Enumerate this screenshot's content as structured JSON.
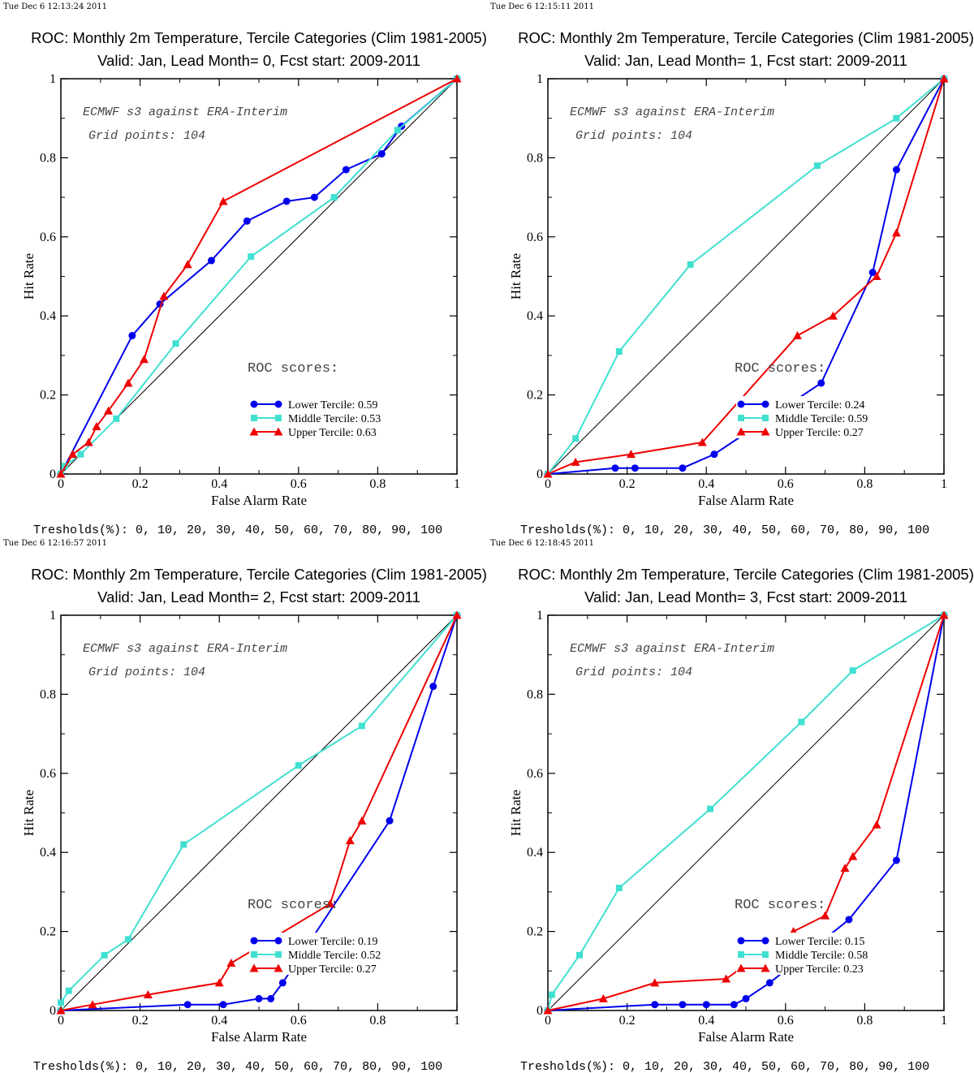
{
  "colors": {
    "lower": "#0000ee",
    "middle": "#40e0d0",
    "upper": "#ee0000",
    "diagonal": "#000000"
  },
  "chart_data": [
    {
      "type": "line",
      "timestamp": "Tue Dec  6 12:13:24 2011",
      "title": "ROC: Monthly 2m Temperature, Tercile Categories (Clim 1981-2005)",
      "subtitle": "Valid: Jan, Lead Month= 0, Fcst start: 2009-2011",
      "xlabel": "False Alarm Rate",
      "ylabel": "Hit Rate",
      "xlim": [
        0,
        1
      ],
      "ylim": [
        0,
        1
      ],
      "x_ticks": [
        "0",
        "0.2",
        "0.4",
        "0.6",
        "0.8",
        "1"
      ],
      "y_ticks": [
        "0",
        "0.2",
        "0.4",
        "0.6",
        "0.8",
        "1"
      ],
      "annotations": [
        "ECMWF s3 against ERA-Interim",
        "Grid points:  104"
      ],
      "roc_scores_label": "ROC scores:",
      "footer": "Tresholds(%): 0, 10, 20, 30, 40, 50, 60, 70, 80, 90, 100",
      "series": [
        {
          "key": "lower",
          "name": "Lower Tercile: 0.59",
          "marker": "circle",
          "points": [
            [
              0,
              0
            ],
            [
              0.18,
              0.35
            ],
            [
              0.25,
              0.43
            ],
            [
              0.38,
              0.54
            ],
            [
              0.47,
              0.64
            ],
            [
              0.57,
              0.69
            ],
            [
              0.64,
              0.7
            ],
            [
              0.72,
              0.77
            ],
            [
              0.81,
              0.81
            ],
            [
              0.86,
              0.88
            ],
            [
              1,
              1
            ]
          ]
        },
        {
          "key": "middle",
          "name": "Middle Tercile: 0.53",
          "marker": "square",
          "points": [
            [
              0,
              0
            ],
            [
              0.01,
              0.02
            ],
            [
              0.05,
              0.05
            ],
            [
              0.14,
              0.14
            ],
            [
              0.29,
              0.33
            ],
            [
              0.48,
              0.55
            ],
            [
              0.69,
              0.7
            ],
            [
              0.85,
              0.87
            ],
            [
              1,
              1
            ]
          ]
        },
        {
          "key": "upper",
          "name": "Upper Tercile: 0.63",
          "marker": "triangle",
          "points": [
            [
              0,
              0
            ],
            [
              0.03,
              0.05
            ],
            [
              0.07,
              0.08
            ],
            [
              0.09,
              0.12
            ],
            [
              0.12,
              0.16
            ],
            [
              0.17,
              0.23
            ],
            [
              0.21,
              0.29
            ],
            [
              0.26,
              0.45
            ],
            [
              0.32,
              0.53
            ],
            [
              0.41,
              0.69
            ],
            [
              1,
              1
            ]
          ]
        }
      ]
    },
    {
      "type": "line",
      "timestamp": "Tue Dec  6 12:15:11 2011",
      "title": "ROC: Monthly 2m Temperature, Tercile Categories (Clim 1981-2005)",
      "subtitle": "Valid: Jan, Lead Month= 1, Fcst start: 2009-2011",
      "xlabel": "False Alarm Rate",
      "ylabel": "Hit Rate",
      "xlim": [
        0,
        1
      ],
      "ylim": [
        0,
        1
      ],
      "x_ticks": [
        "0",
        "0.2",
        "0.4",
        "0.6",
        "0.8",
        "1"
      ],
      "y_ticks": [
        "0",
        "0.2",
        "0.4",
        "0.6",
        "0.8",
        "1"
      ],
      "annotations": [
        "ECMWF s3 against ERA-Interim",
        "Grid points:  104"
      ],
      "roc_scores_label": "ROC scores:",
      "footer": "Tresholds(%): 0, 10, 20, 30, 40, 50, 60, 70, 80, 90, 100",
      "series": [
        {
          "key": "lower",
          "name": "Lower Tercile: 0.24",
          "marker": "circle",
          "points": [
            [
              0,
              0
            ],
            [
              0.17,
              0.015
            ],
            [
              0.22,
              0.015
            ],
            [
              0.34,
              0.015
            ],
            [
              0.42,
              0.05
            ],
            [
              0.69,
              0.23
            ],
            [
              0.82,
              0.51
            ],
            [
              0.88,
              0.77
            ],
            [
              1,
              1
            ]
          ]
        },
        {
          "key": "middle",
          "name": "Middle Tercile: 0.59",
          "marker": "square",
          "points": [
            [
              0,
              0
            ],
            [
              0.07,
              0.09
            ],
            [
              0.18,
              0.31
            ],
            [
              0.36,
              0.53
            ],
            [
              0.68,
              0.78
            ],
            [
              0.88,
              0.9
            ],
            [
              1,
              1
            ]
          ]
        },
        {
          "key": "upper",
          "name": "Upper Tercile: 0.27",
          "marker": "triangle",
          "points": [
            [
              0,
              0
            ],
            [
              0.07,
              0.03
            ],
            [
              0.21,
              0.05
            ],
            [
              0.39,
              0.08
            ],
            [
              0.63,
              0.35
            ],
            [
              0.72,
              0.4
            ],
            [
              0.83,
              0.5
            ],
            [
              0.88,
              0.61
            ],
            [
              1,
              1
            ]
          ]
        }
      ]
    },
    {
      "type": "line",
      "timestamp": "Tue Dec  6 12:16:57 2011",
      "title": "ROC: Monthly 2m Temperature, Tercile Categories (Clim 1981-2005)",
      "subtitle": "Valid: Jan, Lead Month= 2, Fcst start: 2009-2011",
      "xlabel": "False Alarm Rate",
      "ylabel": "Hit Rate",
      "xlim": [
        0,
        1
      ],
      "ylim": [
        0,
        1
      ],
      "x_ticks": [
        "0",
        "0.2",
        "0.4",
        "0.6",
        "0.8",
        "1"
      ],
      "y_ticks": [
        "0",
        "0.2",
        "0.4",
        "0.6",
        "0.8",
        "1"
      ],
      "annotations": [
        "ECMWF s3 against ERA-Interim",
        "Grid points:  104"
      ],
      "roc_scores_label": "ROC scores:",
      "footer": "Tresholds(%): 0, 10, 20, 30, 40, 50, 60, 70, 80, 90, 100",
      "series": [
        {
          "key": "lower",
          "name": "Lower Tercile: 0.19",
          "marker": "circle",
          "points": [
            [
              0,
              0
            ],
            [
              0.32,
              0.015
            ],
            [
              0.41,
              0.015
            ],
            [
              0.5,
              0.03
            ],
            [
              0.53,
              0.03
            ],
            [
              0.56,
              0.07
            ],
            [
              0.83,
              0.48
            ],
            [
              0.94,
              0.82
            ],
            [
              1,
              1
            ]
          ]
        },
        {
          "key": "middle",
          "name": "Middle Tercile: 0.52",
          "marker": "square",
          "points": [
            [
              0,
              0
            ],
            [
              0,
              0.02
            ],
            [
              0.02,
              0.05
            ],
            [
              0.11,
              0.14
            ],
            [
              0.17,
              0.18
            ],
            [
              0.31,
              0.42
            ],
            [
              0.6,
              0.62
            ],
            [
              0.76,
              0.72
            ],
            [
              1,
              1
            ]
          ]
        },
        {
          "key": "upper",
          "name": "Upper Tercile: 0.27",
          "marker": "triangle",
          "points": [
            [
              0,
              0
            ],
            [
              0.08,
              0.015
            ],
            [
              0.22,
              0.04
            ],
            [
              0.4,
              0.07
            ],
            [
              0.43,
              0.12
            ],
            [
              0.68,
              0.27
            ],
            [
              0.73,
              0.43
            ],
            [
              0.76,
              0.48
            ],
            [
              1,
              1
            ]
          ]
        }
      ]
    },
    {
      "type": "line",
      "timestamp": "Tue Dec  6 12:18:45 2011",
      "title": "ROC: Monthly 2m Temperature, Tercile Categories (Clim 1981-2005)",
      "subtitle": "Valid: Jan, Lead Month= 3, Fcst start: 2009-2011",
      "xlabel": "False Alarm Rate",
      "ylabel": "Hit Rate",
      "xlim": [
        0,
        1
      ],
      "ylim": [
        0,
        1
      ],
      "x_ticks": [
        "0",
        "0.2",
        "0.4",
        "0.6",
        "0.8",
        "1"
      ],
      "y_ticks": [
        "0",
        "0.2",
        "0.4",
        "0.6",
        "0.8",
        "1"
      ],
      "annotations": [
        "ECMWF s3 against ERA-Interim",
        "Grid points:  104"
      ],
      "roc_scores_label": "ROC scores:",
      "footer": "Tresholds(%): 0, 10, 20, 30, 40, 50, 60, 70, 80, 90, 100",
      "series": [
        {
          "key": "lower",
          "name": "Lower Tercile: 0.15",
          "marker": "circle",
          "points": [
            [
              0,
              0
            ],
            [
              0.27,
              0.015
            ],
            [
              0.34,
              0.015
            ],
            [
              0.4,
              0.015
            ],
            [
              0.47,
              0.015
            ],
            [
              0.5,
              0.03
            ],
            [
              0.56,
              0.07
            ],
            [
              0.76,
              0.23
            ],
            [
              0.88,
              0.38
            ],
            [
              1,
              1
            ]
          ]
        },
        {
          "key": "middle",
          "name": "Middle Tercile: 0.58",
          "marker": "square",
          "points": [
            [
              0,
              0
            ],
            [
              0.01,
              0.04
            ],
            [
              0.08,
              0.14
            ],
            [
              0.18,
              0.31
            ],
            [
              0.41,
              0.51
            ],
            [
              0.64,
              0.73
            ],
            [
              0.77,
              0.86
            ],
            [
              1,
              1
            ]
          ]
        },
        {
          "key": "upper",
          "name": "Upper Tercile: 0.23",
          "marker": "triangle",
          "points": [
            [
              0,
              0
            ],
            [
              0.14,
              0.03
            ],
            [
              0.27,
              0.07
            ],
            [
              0.45,
              0.08
            ],
            [
              0.62,
              0.2
            ],
            [
              0.7,
              0.24
            ],
            [
              0.75,
              0.36
            ],
            [
              0.77,
              0.39
            ],
            [
              0.83,
              0.47
            ],
            [
              1,
              1
            ]
          ]
        }
      ]
    }
  ]
}
